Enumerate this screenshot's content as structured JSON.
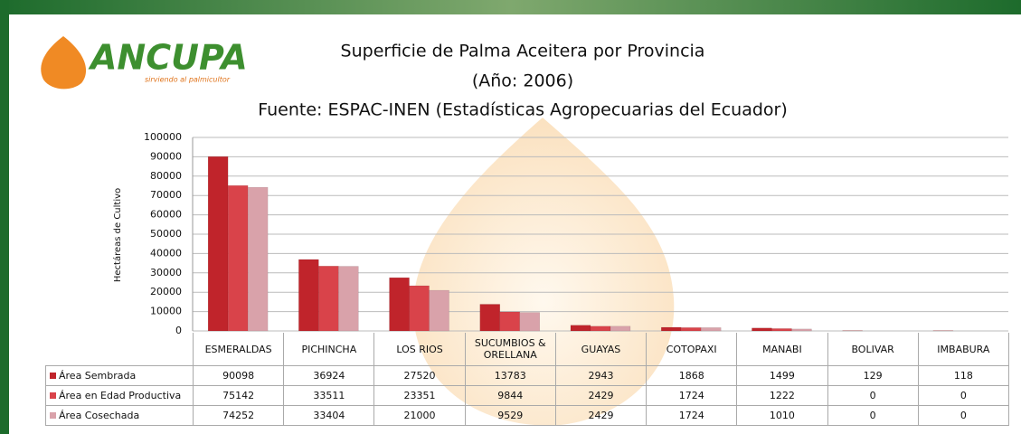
{
  "chart_data": {
    "type": "bar",
    "logo": "ANCUPA",
    "tagline": "sirviendo al palmicultor",
    "title": "Superficie de Palma Aceitera por Provincia",
    "subtitle": "(Año: 2006)",
    "source": "Fuente: ESPAC-INEN (Estadísticas Agropecuarias del Ecuador)",
    "y_label": "Hectáreas de Cultivo",
    "categories": [
      "ESMERALDAS",
      "PICHINCHA",
      "LOS RIOS",
      "SUCUMBIOS & ORELLANA",
      "GUAYAS",
      "COTOPAXI",
      "MANABI",
      "BOLIVAR",
      "IMBABURA"
    ],
    "series": [
      {
        "name": "Área Sembrada",
        "color": "#c0242b",
        "values": [
          90098,
          36924,
          27520,
          13783,
          2943,
          1868,
          1499,
          129,
          118
        ]
      },
      {
        "name": "Área en Edad Productiva",
        "color": "#d9434a",
        "values": [
          75142,
          33511,
          23351,
          9844,
          2429,
          1724,
          1222,
          0,
          0
        ]
      },
      {
        "name": "Área Cosechada",
        "color": "#d9a2aa",
        "values": [
          74252,
          33404,
          21000,
          9529,
          2429,
          1724,
          1010,
          0,
          0
        ]
      }
    ],
    "ylim": [
      0,
      100000
    ],
    "yticks": [
      0,
      10000,
      20000,
      30000,
      40000,
      50000,
      60000,
      70000,
      80000,
      90000,
      100000
    ],
    "grid": true
  }
}
